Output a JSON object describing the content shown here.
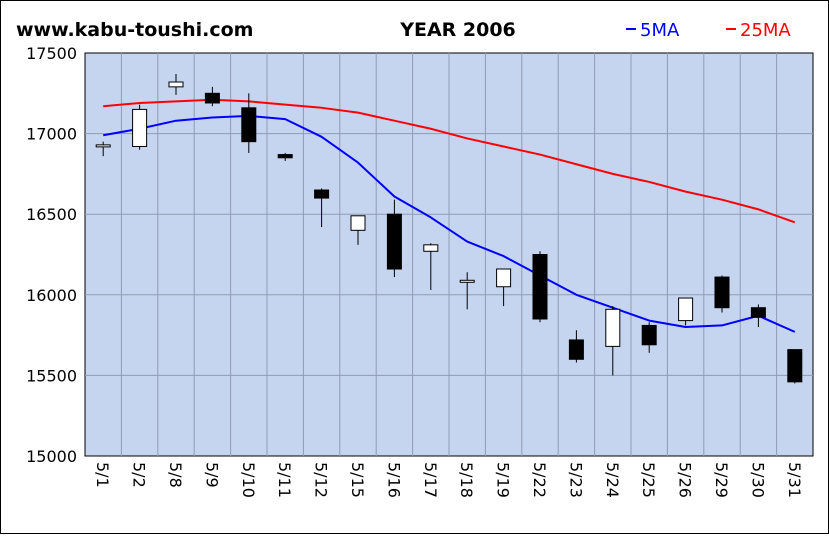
{
  "header": {
    "site": "www.kabu-toushi.com",
    "title": "YEAR 2006",
    "legend_5ma": "5MA",
    "legend_25ma": "25MA"
  },
  "colors": {
    "plot_background": "#c5d4ef",
    "ma5": "#0000ff",
    "ma25": "#ff0000",
    "up_candle": "#ffffff",
    "down_candle": "#000000"
  },
  "chart_data": {
    "type": "candlestick",
    "ylim": [
      15000,
      17500
    ],
    "yticks": [
      15000,
      15500,
      16000,
      16500,
      17000,
      17500
    ],
    "categories": [
      "5/1",
      "5/2",
      "5/8",
      "5/9",
      "5/10",
      "5/11",
      "5/12",
      "5/15",
      "5/16",
      "5/17",
      "5/18",
      "5/19",
      "5/22",
      "5/23",
      "5/24",
      "5/25",
      "5/26",
      "5/29",
      "5/30",
      "5/31"
    ],
    "open": [
      16920,
      16920,
      17290,
      17250,
      17160,
      16870,
      16650,
      16400,
      16500,
      16270,
      16090,
      16050,
      16250,
      15720,
      15680,
      15810,
      15840,
      16110,
      15920,
      15660
    ],
    "high": [
      16950,
      17180,
      17370,
      17290,
      17250,
      16880,
      16660,
      16490,
      16590,
      16320,
      16140,
      16160,
      16270,
      15780,
      15930,
      15830,
      15980,
      16120,
      15940,
      15660
    ],
    "low": [
      16860,
      16900,
      17240,
      17170,
      16880,
      16830,
      16420,
      16310,
      16110,
      16030,
      15910,
      15930,
      15830,
      15580,
      15500,
      15640,
      15810,
      15890,
      15800,
      15450
    ],
    "close": [
      16930,
      17150,
      17320,
      17190,
      16950,
      16850,
      16600,
      16490,
      16160,
      16310,
      16090,
      16160,
      15850,
      15600,
      15910,
      15690,
      15980,
      15920,
      15860,
      15460
    ],
    "series": [
      {
        "name": "5MA",
        "values": [
          16990,
          17030,
          17080,
          17100,
          17110,
          17090,
          16980,
          16820,
          16610,
          16480,
          16330,
          16240,
          16120,
          16000,
          15920,
          15840,
          15800,
          15810,
          15870,
          15770
        ]
      },
      {
        "name": "25MA",
        "values": [
          17170,
          17190,
          17200,
          17210,
          17200,
          17180,
          17160,
          17130,
          17080,
          17030,
          16970,
          16920,
          16870,
          16810,
          16750,
          16700,
          16640,
          16590,
          16530,
          16450
        ]
      }
    ]
  }
}
